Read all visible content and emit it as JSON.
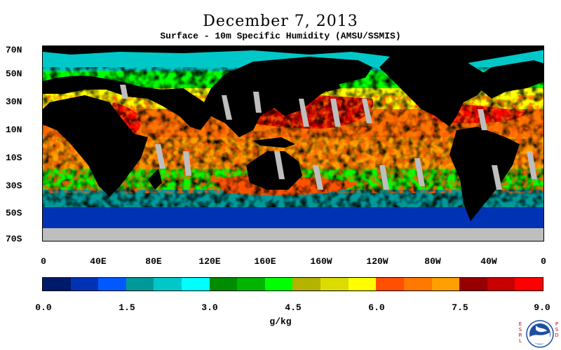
{
  "header": {
    "title": "December 7, 2013",
    "subtitle": "Surface - 10m Specific Humidity (AMSU/SSMIS)"
  },
  "map": {
    "latitude_labels": [
      "70N",
      "50N",
      "30N",
      "10N",
      "10S",
      "30S",
      "50S",
      "70S"
    ],
    "longitude_labels": [
      "0",
      "40E",
      "80E",
      "120E",
      "160E",
      "160W",
      "120W",
      "80W",
      "40W",
      "0"
    ],
    "land_color": "#000000",
    "missing_color": "#bebebe"
  },
  "colorbar": {
    "colors": [
      "#001a6b",
      "#0033b3",
      "#0059ff",
      "#009999",
      "#00c8c8",
      "#00ffff",
      "#008c00",
      "#00b400",
      "#00ff00",
      "#b4b400",
      "#dcdc00",
      "#ffff00",
      "#ff5000",
      "#ff7800",
      "#ffa000",
      "#960000",
      "#c80000",
      "#ff0000"
    ],
    "tick_labels": [
      "0.0",
      "1.5",
      "3.0",
      "4.5",
      "6.0",
      "7.5",
      "9.0"
    ],
    "units": "g/kg"
  },
  "logo": {
    "left_text": "ESRL",
    "right_text": "PSD",
    "center_text": "NOAA"
  }
}
